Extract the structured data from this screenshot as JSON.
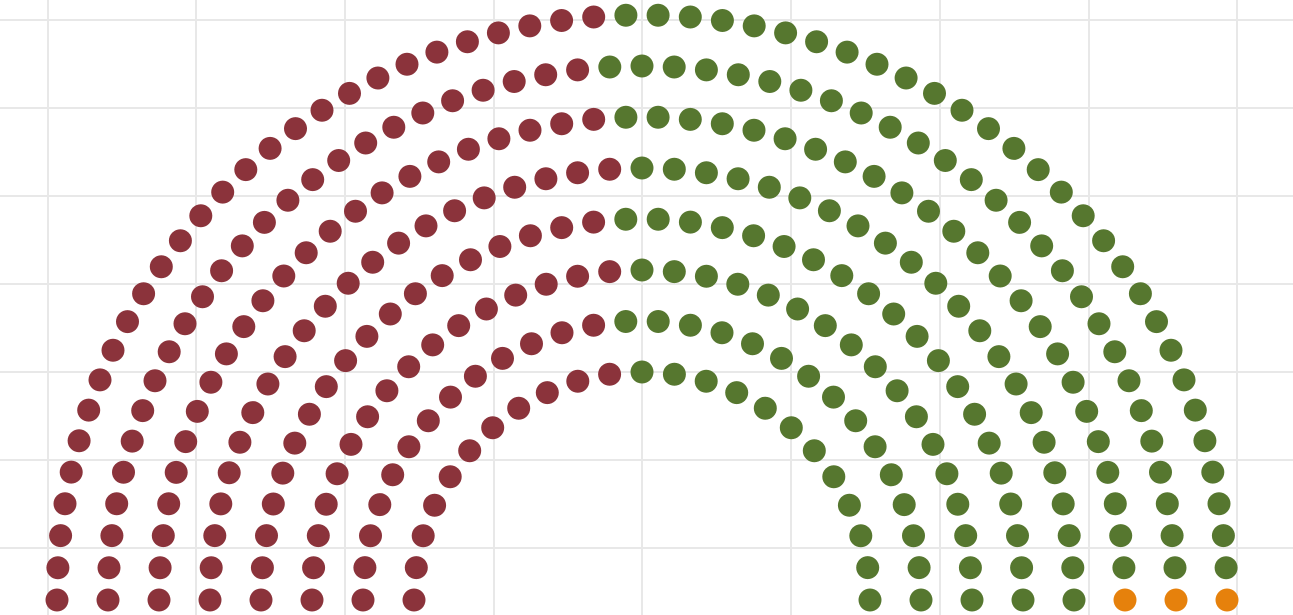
{
  "chart_data": {
    "type": "parliament",
    "title": "",
    "total_seats": 324,
    "rows": 8,
    "grid": true,
    "series": [
      {
        "color": "#8b333b",
        "value": 155
      },
      {
        "color": "#56772f",
        "value": 166
      },
      {
        "color": "#e6810c",
        "value": 3
      }
    ]
  }
}
